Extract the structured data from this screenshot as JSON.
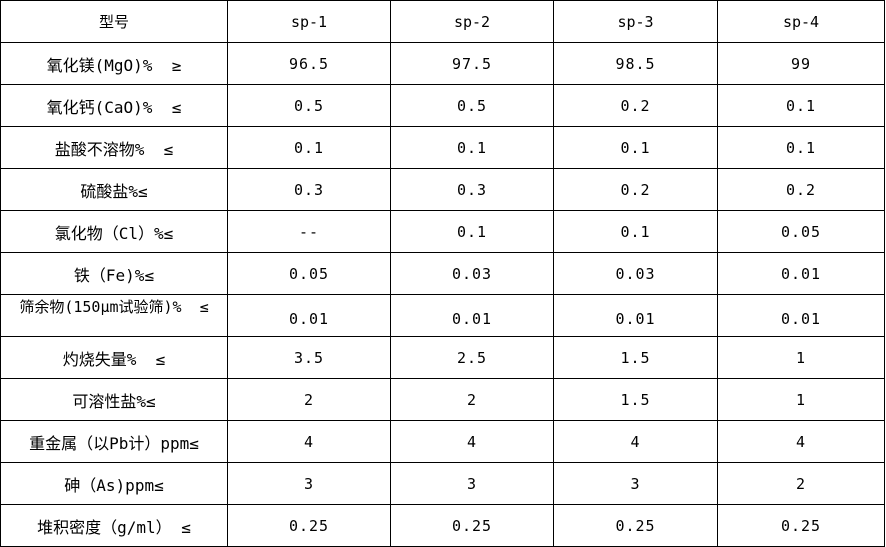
{
  "colors": {
    "border": "#000000",
    "text": "#000000",
    "background": "#ffffff"
  },
  "table": {
    "header": {
      "model_label": "型号",
      "columns": [
        "sp-1",
        "sp-2",
        "sp-3",
        "sp-4"
      ]
    },
    "rows": [
      {
        "label": "氧化镁(MgO)%  ≥",
        "values": [
          "96.5",
          "97.5",
          "98.5",
          "99"
        ]
      },
      {
        "label": "氧化钙(CaO)%  ≤",
        "values": [
          "0.5",
          "0.5",
          "0.2",
          "0.1"
        ]
      },
      {
        "label": "盐酸不溶物%  ≤",
        "values": [
          "0.1",
          "0.1",
          "0.1",
          "0.1"
        ]
      },
      {
        "label": "硫酸盐%≤",
        "values": [
          "0.3",
          "0.3",
          "0.2",
          "0.2"
        ]
      },
      {
        "label": "氯化物（Cl）%≤",
        "values": [
          "--",
          "0.1",
          "0.1",
          "0.05"
        ]
      },
      {
        "label": "铁（Fe)%≤",
        "values": [
          "0.05",
          "0.03",
          "0.03",
          "0.01"
        ]
      },
      {
        "label": "筛余物(150μm试验筛)%  ≤",
        "values": [
          "0.01",
          "0.01",
          "0.01",
          "0.01"
        ]
      },
      {
        "label": "灼烧失量%  ≤",
        "values": [
          "3.5",
          "2.5",
          "1.5",
          "1"
        ]
      },
      {
        "label": "可溶性盐%≤",
        "values": [
          "2",
          "2",
          "1.5",
          "1"
        ]
      },
      {
        "label": "重金属（以Pb计）ppm≤",
        "values": [
          "4",
          "4",
          "4",
          "4"
        ]
      },
      {
        "label": "砷（As)ppm≤",
        "values": [
          "3",
          "3",
          "3",
          "2"
        ]
      },
      {
        "label": "堆积密度（g/ml） ≤",
        "values": [
          "0.25",
          "0.25",
          "0.25",
          "0.25"
        ]
      }
    ]
  }
}
